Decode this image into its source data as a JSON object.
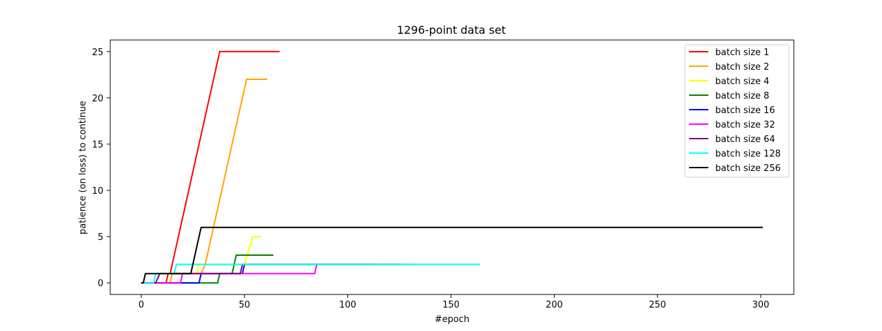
{
  "chart_data": {
    "type": "line",
    "title": "1296-point data set",
    "xlabel": "#epoch",
    "ylabel": "patience (on loss) to continue",
    "xlim": [
      -15,
      316
    ],
    "ylim": [
      -1.25,
      26.25
    ],
    "xticks": [
      0,
      50,
      100,
      150,
      200,
      250,
      300
    ],
    "yticks": [
      0,
      5,
      10,
      15,
      20,
      25
    ],
    "grid": false,
    "legend_position": "top-right",
    "series": [
      {
        "name": "batch size 1",
        "color": "#ff0000",
        "points": [
          [
            0,
            0
          ],
          [
            12,
            0
          ],
          [
            13,
            1
          ],
          [
            14,
            1
          ],
          [
            38,
            25
          ],
          [
            67,
            25
          ]
        ]
      },
      {
        "name": "batch size 2",
        "color": "#ffa500",
        "points": [
          [
            0,
            0
          ],
          [
            14,
            0
          ],
          [
            15,
            1
          ],
          [
            29,
            1
          ],
          [
            31,
            2
          ],
          [
            51,
            22
          ],
          [
            61,
            22
          ]
        ]
      },
      {
        "name": "batch size 4",
        "color": "#ffff00",
        "points": [
          [
            0,
            0
          ],
          [
            19,
            0
          ],
          [
            20,
            1
          ],
          [
            27,
            1
          ],
          [
            28,
            2
          ],
          [
            50,
            2
          ],
          [
            54,
            5
          ],
          [
            58,
            5
          ]
        ]
      },
      {
        "name": "batch size 8",
        "color": "#008000",
        "points": [
          [
            0,
            0
          ],
          [
            37,
            0
          ],
          [
            38,
            1
          ],
          [
            44,
            1
          ],
          [
            45,
            2
          ],
          [
            46,
            3
          ],
          [
            64,
            3
          ]
        ]
      },
      {
        "name": "batch size 16",
        "color": "#0000ff",
        "points": [
          [
            0,
            0
          ],
          [
            28,
            0
          ],
          [
            29,
            1
          ],
          [
            49,
            1
          ],
          [
            50,
            2
          ],
          [
            113,
            2
          ]
        ]
      },
      {
        "name": "batch size 32",
        "color": "#ff00ff",
        "points": [
          [
            0,
            0
          ],
          [
            19,
            0
          ],
          [
            20,
            1
          ],
          [
            84,
            1
          ],
          [
            85,
            2
          ],
          [
            125,
            2
          ]
        ]
      },
      {
        "name": "batch size 64",
        "color": "#800080",
        "points": [
          [
            0,
            0
          ],
          [
            7,
            0
          ],
          [
            9,
            1
          ],
          [
            48,
            1
          ],
          [
            49,
            2
          ],
          [
            133,
            2
          ]
        ]
      },
      {
        "name": "batch size 128",
        "color": "#00ffff",
        "points": [
          [
            0,
            0
          ],
          [
            6,
            0
          ],
          [
            7,
            1
          ],
          [
            16,
            1
          ],
          [
            17,
            2
          ],
          [
            164,
            2
          ]
        ]
      },
      {
        "name": "batch size 256",
        "color": "#000000",
        "points": [
          [
            0,
            0
          ],
          [
            1,
            0
          ],
          [
            2,
            1
          ],
          [
            24,
            1
          ],
          [
            29,
            6
          ],
          [
            301,
            6
          ]
        ]
      }
    ]
  }
}
